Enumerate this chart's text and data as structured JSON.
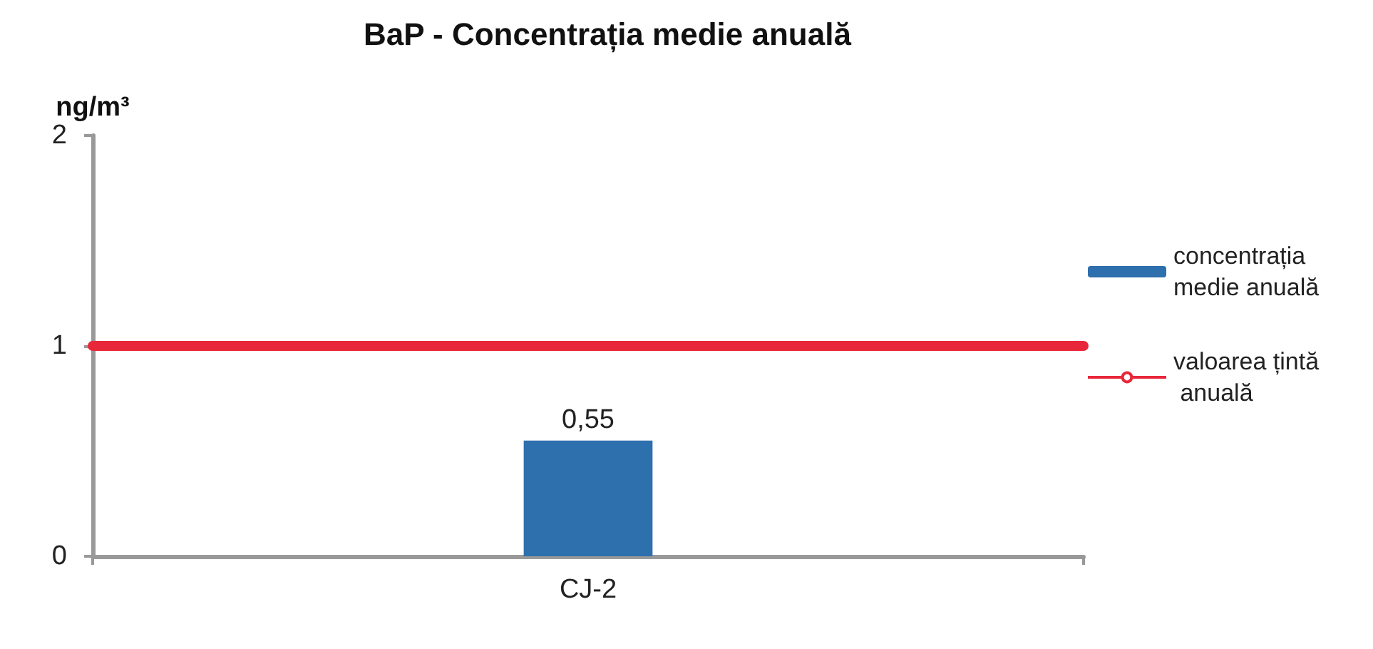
{
  "chart_data": {
    "type": "bar",
    "title": "BaP - Concentrația medie anuală",
    "ylabel": "ng/m³",
    "categories": [
      "CJ-2"
    ],
    "series": [
      {
        "name": "concentrația medie anuală",
        "color": "#2e6fad",
        "values": [
          0.55
        ],
        "value_labels": [
          "0,55"
        ]
      }
    ],
    "ref_lines": [
      {
        "axis": "y",
        "value": 1,
        "label": "valoarea țintă anuală",
        "color": "#e8283a"
      }
    ],
    "ylim": [
      0,
      2
    ],
    "yticks": [
      0,
      1,
      2
    ],
    "grid": false,
    "legend": "right"
  }
}
